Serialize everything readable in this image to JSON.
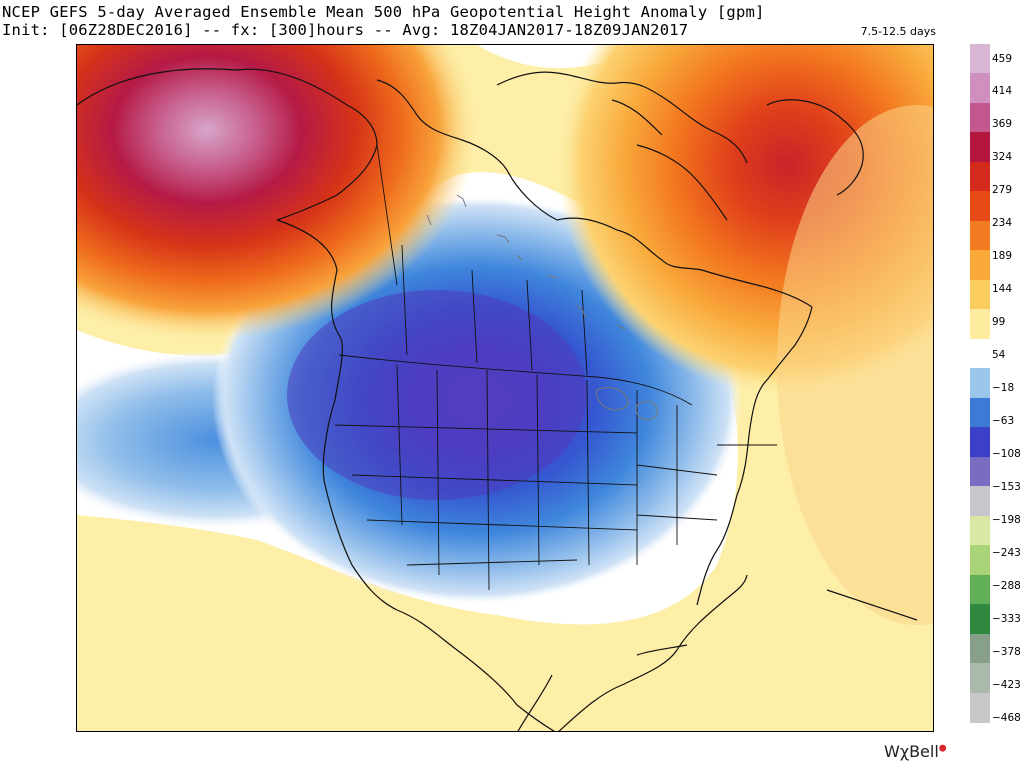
{
  "header": {
    "title_line1": "NCEP GEFS 5-day Averaged Ensemble Mean 500 hPa Geopotential Height Anomaly [gpm]",
    "title_line2": "Init: [06Z28DEC2016] -- fx: [300]hours -- Avg: 18Z04JAN2017-18Z09JAN2017",
    "range_label": "7.5-12.5 days"
  },
  "map": {
    "region": "North America",
    "layers": [
      "coastlines",
      "country-borders",
      "state-province-borders",
      "anomaly-shading"
    ],
    "features": [
      {
        "kind": "positive-anomaly",
        "location": "Gulf of Alaska / Alaska",
        "peak_band": "369-414"
      },
      {
        "kind": "positive-anomaly",
        "location": "Greenland / Baffin Bay",
        "peak_band": "279-324"
      },
      {
        "kind": "negative-anomaly",
        "location": "Western and central United States / Canadian Prairies",
        "peak_band": "-153 to -198"
      },
      {
        "kind": "positive-anomaly",
        "location": "Gulf of Mexico / Mexico / Atlantic",
        "peak_band": "54-99"
      }
    ]
  },
  "colorbar": {
    "labels": [
      "459",
      "414",
      "369",
      "324",
      "279",
      "234",
      "189",
      "144",
      "99",
      "54",
      "−18",
      "−63",
      "−108",
      "−153",
      "−198",
      "−243",
      "−288",
      "−333",
      "−378",
      "−423",
      "−468"
    ],
    "colors": [
      "#d8b5d3",
      "#cf8fbf",
      "#c4578e",
      "#b3173d",
      "#d22a1c",
      "#e84a15",
      "#f27a20",
      "#f9a83a",
      "#fbcd5e",
      "#fdeb9e",
      "#ffffff",
      "#9cc5ec",
      "#3b7bd6",
      "#3c3fc7",
      "#7a6cc0",
      "#c6c6cc",
      "#d9e8a5",
      "#a8d477",
      "#5fb057",
      "#2f8a3f",
      "#86a08a",
      "#aab9ab",
      "#c8c8c8"
    ]
  },
  "brand": {
    "name": "WχBell"
  }
}
